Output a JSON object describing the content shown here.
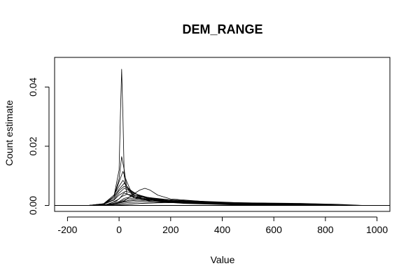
{
  "chart_data": {
    "type": "line",
    "title": "DEM_RANGE",
    "xlabel": "Value",
    "ylabel": "Count estimate",
    "xlim": [
      -250,
      1050
    ],
    "ylim": [
      -0.002,
      0.05
    ],
    "xticks": [
      -200,
      0,
      200,
      400,
      600,
      800,
      1000
    ],
    "yticks": [
      0.0,
      0.02,
      0.04
    ],
    "ytick_labels": [
      "0.00",
      "0.02",
      "0.04"
    ],
    "grid": false,
    "legend": "none",
    "baseline": 0,
    "colors": {
      "line": "#000000",
      "axis": "#000000",
      "background": "#ffffff"
    },
    "series": [
      {
        "values": [
          [
            -120,
            0.0
          ],
          [
            -60,
            0.0003
          ],
          [
            -20,
            0.003
          ],
          [
            0,
            0.012
          ],
          [
            5,
            0.03
          ],
          [
            10,
            0.046
          ],
          [
            15,
            0.03
          ],
          [
            20,
            0.01
          ],
          [
            30,
            0.004
          ],
          [
            60,
            0.0025
          ],
          [
            120,
            0.0015
          ],
          [
            250,
            0.0007
          ],
          [
            450,
            0.0002
          ],
          [
            650,
            0.0
          ]
        ]
      },
      {
        "values": [
          [
            -110,
            0.0
          ],
          [
            -60,
            0.0004
          ],
          [
            -20,
            0.003
          ],
          [
            0,
            0.009
          ],
          [
            10,
            0.0165
          ],
          [
            20,
            0.012
          ],
          [
            30,
            0.006
          ],
          [
            60,
            0.0025
          ],
          [
            120,
            0.0015
          ],
          [
            250,
            0.0008
          ],
          [
            450,
            0.0003
          ],
          [
            650,
            0.0
          ]
        ]
      },
      {
        "values": [
          [
            -110,
            0.0
          ],
          [
            -60,
            0.0005
          ],
          [
            -20,
            0.003
          ],
          [
            0,
            0.008
          ],
          [
            15,
            0.0115
          ],
          [
            30,
            0.008
          ],
          [
            50,
            0.004
          ],
          [
            100,
            0.002
          ],
          [
            250,
            0.0008
          ],
          [
            450,
            0.0003
          ],
          [
            700,
            0.0
          ]
        ]
      },
      {
        "values": [
          [
            -120,
            0.0
          ],
          [
            -60,
            0.0006
          ],
          [
            -20,
            0.0035
          ],
          [
            0,
            0.0065
          ],
          [
            15,
            0.0085
          ],
          [
            30,
            0.0065
          ],
          [
            60,
            0.003
          ],
          [
            120,
            0.0018
          ],
          [
            250,
            0.0009
          ],
          [
            500,
            0.0003
          ],
          [
            750,
            0.0
          ]
        ]
      },
      {
        "values": [
          [
            -120,
            0.0
          ],
          [
            -60,
            0.0006
          ],
          [
            -20,
            0.003
          ],
          [
            0,
            0.0055
          ],
          [
            20,
            0.0075
          ],
          [
            40,
            0.0055
          ],
          [
            80,
            0.003
          ],
          [
            150,
            0.0017
          ],
          [
            300,
            0.0008
          ],
          [
            550,
            0.0002
          ],
          [
            800,
            0.0
          ]
        ]
      },
      {
        "values": [
          [
            -120,
            0.0
          ],
          [
            -60,
            0.0005
          ],
          [
            -20,
            0.0025
          ],
          [
            0,
            0.005
          ],
          [
            20,
            0.0065
          ],
          [
            45,
            0.005
          ],
          [
            90,
            0.0028
          ],
          [
            180,
            0.0015
          ],
          [
            350,
            0.0007
          ],
          [
            600,
            0.0002
          ],
          [
            850,
            0.0
          ]
        ]
      },
      {
        "values": [
          [
            -120,
            0.0
          ],
          [
            -60,
            0.0005
          ],
          [
            -20,
            0.002
          ],
          [
            0,
            0.0042
          ],
          [
            20,
            0.0058
          ],
          [
            50,
            0.0045
          ],
          [
            100,
            0.0026
          ],
          [
            200,
            0.0014
          ],
          [
            400,
            0.0006
          ],
          [
            700,
            0.0002
          ],
          [
            900,
            0.0
          ]
        ]
      },
      {
        "values": [
          [
            -120,
            0.0
          ],
          [
            -60,
            0.0004
          ],
          [
            -20,
            0.0018
          ],
          [
            0,
            0.0035
          ],
          [
            25,
            0.0048
          ],
          [
            60,
            0.004
          ],
          [
            120,
            0.0025
          ],
          [
            250,
            0.0013
          ],
          [
            450,
            0.0006
          ],
          [
            750,
            0.0002
          ],
          [
            930,
            0.0
          ]
        ]
      },
      {
        "values": [
          [
            -110,
            0.0
          ],
          [
            -50,
            0.0003
          ],
          [
            -10,
            0.0015
          ],
          [
            10,
            0.003
          ],
          [
            30,
            0.0038
          ],
          [
            70,
            0.0033
          ],
          [
            150,
            0.0022
          ],
          [
            300,
            0.0012
          ],
          [
            500,
            0.0006
          ],
          [
            800,
            0.0001
          ],
          [
            930,
            0.0
          ]
        ]
      },
      {
        "values": [
          [
            -100,
            0.0
          ],
          [
            -40,
            0.0003
          ],
          [
            0,
            0.0013
          ],
          [
            20,
            0.0024
          ],
          [
            50,
            0.003
          ],
          [
            100,
            0.0028
          ],
          [
            200,
            0.0019
          ],
          [
            350,
            0.0011
          ],
          [
            550,
            0.0005
          ],
          [
            800,
            0.0001
          ],
          [
            930,
            0.0
          ]
        ]
      },
      {
        "values": [
          [
            -80,
            0.0
          ],
          [
            -20,
            0.0004
          ],
          [
            20,
            0.0015
          ],
          [
            50,
            0.0035
          ],
          [
            80,
            0.0052
          ],
          [
            100,
            0.0058
          ],
          [
            120,
            0.0052
          ],
          [
            150,
            0.0035
          ],
          [
            200,
            0.0022
          ],
          [
            350,
            0.0012
          ],
          [
            550,
            0.0004
          ],
          [
            800,
            0.0
          ]
        ]
      },
      {
        "values": [
          [
            -90,
            0.0
          ],
          [
            -30,
            0.0003
          ],
          [
            10,
            0.0011
          ],
          [
            40,
            0.0018
          ],
          [
            90,
            0.0023
          ],
          [
            160,
            0.002
          ],
          [
            300,
            0.0015
          ],
          [
            500,
            0.0008
          ],
          [
            700,
            0.0003
          ],
          [
            900,
            0.0
          ]
        ]
      },
      {
        "values": [
          [
            -90,
            0.0
          ],
          [
            -30,
            0.0003
          ],
          [
            20,
            0.0012
          ],
          [
            60,
            0.0017
          ],
          [
            130,
            0.0018
          ],
          [
            250,
            0.0014
          ],
          [
            450,
            0.0009
          ],
          [
            650,
            0.0004
          ],
          [
            850,
            0.0001
          ],
          [
            930,
            0.0
          ]
        ]
      },
      {
        "values": [
          [
            -80,
            0.0
          ],
          [
            -20,
            0.0004
          ],
          [
            30,
            0.0009
          ],
          [
            80,
            0.0013
          ],
          [
            160,
            0.0014
          ],
          [
            300,
            0.0012
          ],
          [
            500,
            0.0009
          ],
          [
            700,
            0.0005
          ],
          [
            850,
            0.0002
          ],
          [
            950,
            0.0
          ]
        ]
      },
      {
        "values": [
          [
            -70,
            0.0
          ],
          [
            0,
            0.0002
          ],
          [
            60,
            0.0006
          ],
          [
            150,
            0.0009
          ],
          [
            300,
            0.001
          ],
          [
            500,
            0.0009
          ],
          [
            700,
            0.0007
          ],
          [
            850,
            0.0004
          ],
          [
            950,
            0.0
          ]
        ]
      },
      {
        "values": [
          [
            -60,
            0.0
          ],
          [
            20,
            0.0003
          ],
          [
            100,
            0.0008
          ],
          [
            200,
            0.0012
          ],
          [
            300,
            0.0011
          ],
          [
            450,
            0.0009
          ],
          [
            600,
            0.0007
          ],
          [
            750,
            0.0004
          ],
          [
            900,
            0.0001
          ],
          [
            950,
            0.0
          ]
        ]
      },
      {
        "values": [
          [
            -100,
            0.0
          ],
          [
            -40,
            0.0004
          ],
          [
            0,
            0.0022
          ],
          [
            20,
            0.0042
          ],
          [
            40,
            0.0035
          ],
          [
            80,
            0.0024
          ],
          [
            160,
            0.0016
          ],
          [
            300,
            0.0009
          ],
          [
            500,
            0.0004
          ],
          [
            750,
            0.0001
          ],
          [
            900,
            0.0
          ]
        ]
      },
      {
        "values": [
          [
            -100,
            0.0
          ],
          [
            -40,
            0.0003
          ],
          [
            0,
            0.0012
          ],
          [
            30,
            0.0022
          ],
          [
            70,
            0.0026
          ],
          [
            120,
            0.0022
          ],
          [
            220,
            0.0014
          ],
          [
            400,
            0.0007
          ],
          [
            650,
            0.0002
          ],
          [
            900,
            0.0
          ]
        ]
      }
    ]
  }
}
